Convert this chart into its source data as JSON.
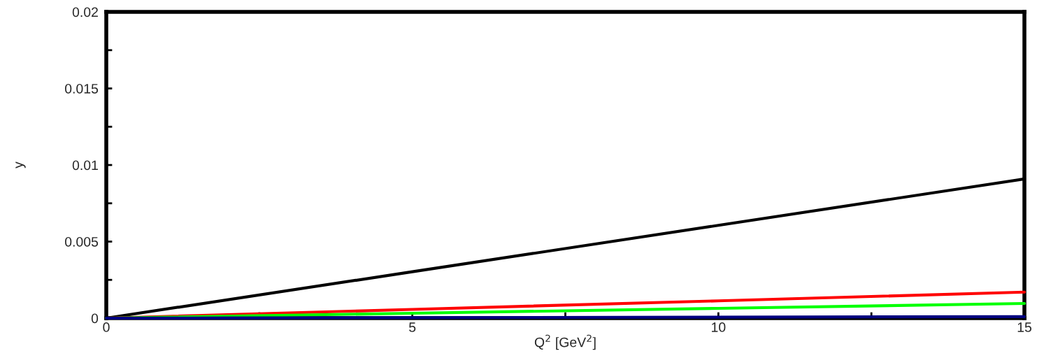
{
  "chart_data": {
    "type": "line",
    "xlabel": "Q$^{2}$ [GeV$^{2}$]",
    "ylabel": "y",
    "x": [
      0,
      5,
      10,
      15
    ],
    "series": [
      {
        "color": "#000000",
        "values": [
          0,
          0.00303,
          0.00606,
          0.00909
        ]
      },
      {
        "color": "#ff0000",
        "values": [
          0,
          0.00057,
          0.00113,
          0.0017
        ]
      },
      {
        "color": "#00ff00",
        "values": [
          0,
          0.00032,
          0.00064,
          0.00096
        ]
      },
      {
        "color": "#000080",
        "x": [
          0,
          15
        ],
        "values": [
          0,
          0.0001
        ]
      }
    ],
    "xlim": [
      0,
      15
    ],
    "ylim": [
      0,
      0.02
    ],
    "xticks": [
      0,
      {
        "value": 2.5,
        "label": null
      },
      5,
      {
        "value": 7.5,
        "label": null
      },
      10,
      {
        "value": 12.5,
        "label": null
      },
      15
    ],
    "yticks": [
      0,
      {
        "value": 0.0025,
        "label": null
      },
      0.005,
      {
        "value": 0.0075,
        "label": null
      },
      0.01,
      {
        "value": 0.0125,
        "label": null
      },
      0.015,
      {
        "value": 0.0175,
        "label": null
      },
      0.02
    ],
    "grid": false,
    "legend": false,
    "line_style": "solid",
    "marker": "none"
  }
}
